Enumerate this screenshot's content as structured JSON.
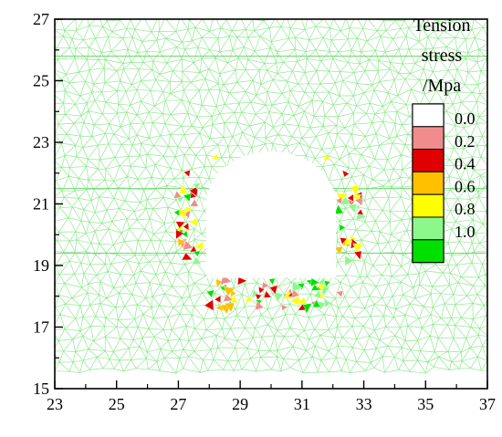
{
  "chart_data": {
    "type": "heatmap",
    "title": "",
    "xlabel": "",
    "ylabel": "",
    "xlim": [
      23,
      37
    ],
    "ylim": [
      15,
      27
    ],
    "xticks": [
      23,
      25,
      27,
      29,
      31,
      33,
      35,
      37
    ],
    "yticks": [
      15,
      17,
      19,
      21,
      23,
      25,
      27
    ],
    "xtick_labels": [
      "23",
      "25",
      "27",
      "29",
      "31",
      "33",
      "35",
      "37"
    ],
    "ytick_labels": [
      "15",
      "17",
      "19",
      "21",
      "23",
      "25",
      "27"
    ],
    "grid": false,
    "background_mesh_color": "#8fe88f",
    "legend": {
      "title_lines": [
        "Tension",
        "stress",
        "/Mpa"
      ],
      "placement": "top-right",
      "entries": [
        {
          "label": "0.0",
          "color": "#ffffff"
        },
        {
          "label": "0.2",
          "color": "#f08c8c"
        },
        {
          "label": "0.4",
          "color": "#e00000"
        },
        {
          "label": "0.6",
          "color": "#ffc000"
        },
        {
          "label": "0.8",
          "color": "#ffff00"
        },
        {
          "label": "1.0",
          "color": "#8cf88c"
        },
        {
          "label": "",
          "color": "#00e000"
        }
      ]
    },
    "opening": {
      "shape": "horseshoe",
      "x_range": [
        27.9,
        32.1
      ],
      "y_floor": 18.6,
      "y_wall_top": 21.0,
      "y_crown": 22.7
    }
  }
}
